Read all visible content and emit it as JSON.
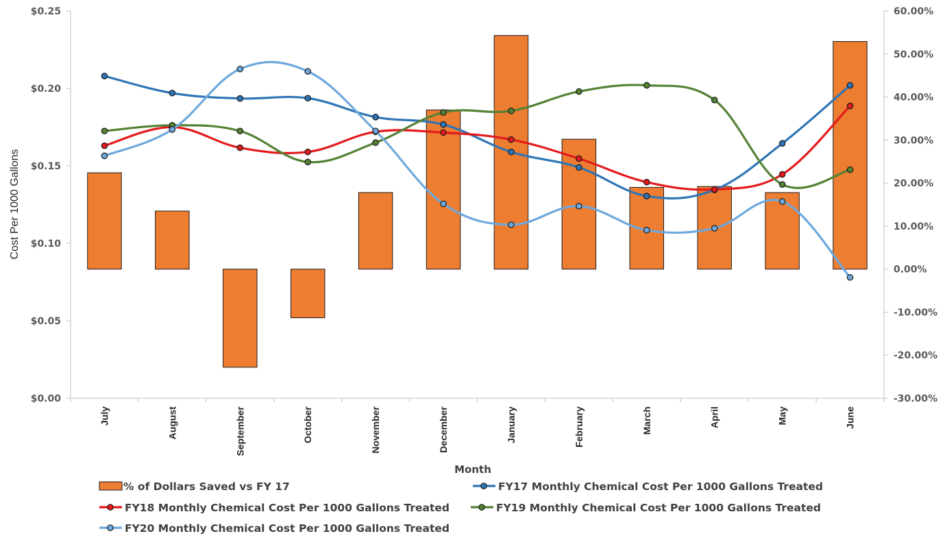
{
  "chart_data": {
    "type": "bar+line",
    "title": "",
    "xlabel": "Month",
    "ylabel": "Cost Per 1000 Gallons",
    "categories": [
      "July",
      "August",
      "September",
      "October",
      "November",
      "December",
      "January",
      "February",
      "March",
      "April",
      "May",
      "June"
    ],
    "y_left": {
      "range": [
        0,
        0.25
      ],
      "ticks": [
        "$0.00",
        "$0.05",
        "$0.10",
        "$0.15",
        "$0.20",
        "$0.25"
      ]
    },
    "y_right": {
      "range": [
        -0.3,
        0.6
      ],
      "ticks": [
        "-30.00%",
        "-20.00%",
        "-10.00%",
        "0.00%",
        "10.00%",
        "20.00%",
        "30.00%",
        "40.00%",
        "50.00%",
        "60.00%"
      ]
    },
    "bar_series": {
      "name": "% of  Dollars Saved vs FY 17",
      "axis": "right",
      "color": "#ED7D31",
      "values": [
        0.224,
        0.135,
        -0.228,
        -0.113,
        0.178,
        0.37,
        0.543,
        0.302,
        0.19,
        0.192,
        0.178,
        0.529
      ]
    },
    "line_series": [
      {
        "name": "FY17 Monthly Chemical Cost Per 1000 Gallons Treated",
        "axis": "left",
        "color": "#2E75B6",
        "values": [
          0.208,
          0.197,
          0.1935,
          0.1937,
          0.1815,
          0.1767,
          0.159,
          0.149,
          0.1305,
          0.1345,
          0.1645,
          0.202
        ]
      },
      {
        "name": "FY18 Monthly Chemical Cost Per 1000 Gallons Treated",
        "axis": "left",
        "color": "#E31A1C",
        "values": [
          0.163,
          0.175,
          0.1617,
          0.159,
          0.172,
          0.1715,
          0.167,
          0.1547,
          0.1395,
          0.1348,
          0.1445,
          0.1887
        ]
      },
      {
        "name": "FY19 Monthly Chemical Cost Per 1000 Gallons Treated",
        "axis": "left",
        "color": "#548235",
        "values": [
          0.1725,
          0.1762,
          0.1725,
          0.1525,
          0.165,
          0.1845,
          0.1855,
          0.198,
          0.202,
          0.1925,
          0.138,
          0.1475
        ]
      },
      {
        "name": "FY20 Monthly Chemical Cost Per 1000 Gallons Treated",
        "axis": "left",
        "color": "#6FA8DC",
        "values": [
          0.1565,
          0.1735,
          0.2125,
          0.211,
          0.1725,
          0.1255,
          0.112,
          0.124,
          0.1085,
          0.1097,
          0.127,
          0.078
        ]
      }
    ],
    "grid": false,
    "legend_position": "bottom"
  }
}
